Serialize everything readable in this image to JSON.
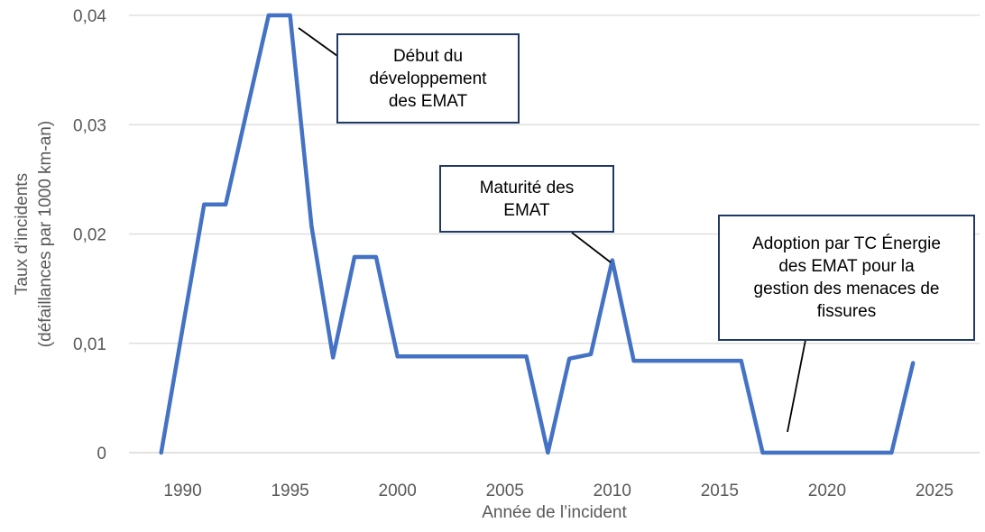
{
  "chart_data": {
    "type": "line",
    "title": "",
    "xlabel": "Année de l’incident",
    "ylabel_line1": "Taux d’incidents",
    "ylabel_line2": "(défaillances par 1000 km-an)",
    "legend": "none",
    "grid": "horizontal",
    "xlim": [
      1987.5,
      2027.1
    ],
    "ylim": [
      0,
      0.04
    ],
    "x_ticks": [
      {
        "value": 1990,
        "label": "1990"
      },
      {
        "value": 1995,
        "label": "1995"
      },
      {
        "value": 2000,
        "label": "2000"
      },
      {
        "value": 2005,
        "label": "2005"
      },
      {
        "value": 2010,
        "label": "2010"
      },
      {
        "value": 2015,
        "label": "2015"
      },
      {
        "value": 2020,
        "label": "2020"
      },
      {
        "value": 2025,
        "label": "2025"
      }
    ],
    "y_ticks": [
      {
        "value": 0,
        "label": "0"
      },
      {
        "value": 0.01,
        "label": "0,01"
      },
      {
        "value": 0.02,
        "label": "0,02"
      },
      {
        "value": 0.03,
        "label": "0,03"
      },
      {
        "value": 0.04,
        "label": "0,04"
      }
    ],
    "series": [
      {
        "name": "Taux d’incidents",
        "x": [
          1989,
          1990,
          1991,
          1992,
          1993,
          1994,
          1995,
          1996,
          1997,
          1998,
          1999,
          2000,
          2001,
          2002,
          2003,
          2004,
          2005,
          2006,
          2007,
          2008,
          2009,
          2010,
          2011,
          2012,
          2013,
          2014,
          2015,
          2016,
          2017,
          2018,
          2019,
          2020,
          2021,
          2022,
          2023,
          2024
        ],
        "values": [
          0,
          0.0114,
          0.0227,
          0.0227,
          0.0314,
          0.04,
          0.04,
          0.0207,
          0.0087,
          0.0179,
          0.0179,
          0.0088,
          0.0088,
          0.0088,
          0.0088,
          0.0088,
          0.0088,
          0.0088,
          0,
          0.0086,
          0.009,
          0.0176,
          0.0084,
          0.0084,
          0.0084,
          0.0084,
          0.0084,
          0.0084,
          0,
          0,
          0,
          0,
          0,
          0,
          0,
          0.0082
        ]
      }
    ],
    "annotations": [
      {
        "id": "debut",
        "text": "Début du\ndéveloppement\ndes EMAT"
      },
      {
        "id": "maturite",
        "text": "Maturité des\nEMAT"
      },
      {
        "id": "adoption",
        "text": "Adoption par TC Énergie\ndes EMAT pour la\ngestion des menaces de\nfissures"
      }
    ],
    "colors": {
      "line": "#4472C4",
      "grid": "#D9D9D9",
      "axis_text": "#595959",
      "annotation_border": "#1F3864",
      "annotation_text": "#000000",
      "leader_line": "#000000",
      "background": "#FFFFFF"
    }
  }
}
